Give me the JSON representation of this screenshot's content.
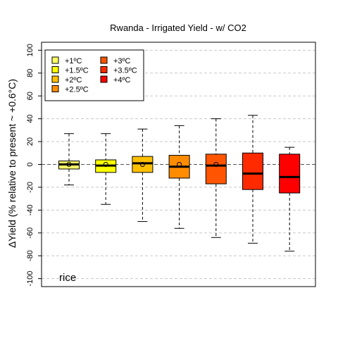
{
  "chart_data": {
    "type": "box",
    "title": "Rwanda - Irrigated Yield - w/ CO2",
    "ylabel": "ΔYield (% relative to present ~ +0.6°C)",
    "xlabel": "",
    "annotation": "rice",
    "ylim": [
      -107,
      107
    ],
    "yticks": [
      -100,
      -80,
      -60,
      -40,
      -20,
      0,
      20,
      40,
      60,
      80,
      100
    ],
    "grid": "horizontal-dashed",
    "reference_line": 0,
    "legend_position": "top-left",
    "series": [
      {
        "name": "+1ºC",
        "color": "#FFFF66",
        "whisker_low": -18,
        "q1": -4,
        "median": 0,
        "q3": 3,
        "whisker_high": 27,
        "mean": 0
      },
      {
        "name": "+1.5ºC",
        "color": "#FFFF00",
        "whisker_low": -35,
        "q1": -7,
        "median": -1,
        "q3": 4,
        "whisker_high": 27,
        "mean": 0
      },
      {
        "name": "+2ºC",
        "color": "#FFC000",
        "whisker_low": -50,
        "q1": -7,
        "median": 1,
        "q3": 7,
        "whisker_high": 31,
        "mean": 0
      },
      {
        "name": "+2.5ºC",
        "color": "#FF8C00",
        "whisker_low": -56,
        "q1": -12,
        "median": -2,
        "q3": 8,
        "whisker_high": 34,
        "mean": 0
      },
      {
        "name": "+3ºC",
        "color": "#FF5500",
        "whisker_low": -64,
        "q1": -17,
        "median": -1,
        "q3": 9,
        "whisker_high": 40,
        "mean": 0
      },
      {
        "name": "+3.5ºC",
        "color": "#FF2A00",
        "whisker_low": -69,
        "q1": -22,
        "median": -8,
        "q3": 10,
        "whisker_high": 43,
        "mean": null
      },
      {
        "name": "+4ºC",
        "color": "#FF0000",
        "whisker_low": -76,
        "q1": -25,
        "median": -11,
        "q3": 9,
        "whisker_high": 15,
        "mean": null
      }
    ]
  }
}
